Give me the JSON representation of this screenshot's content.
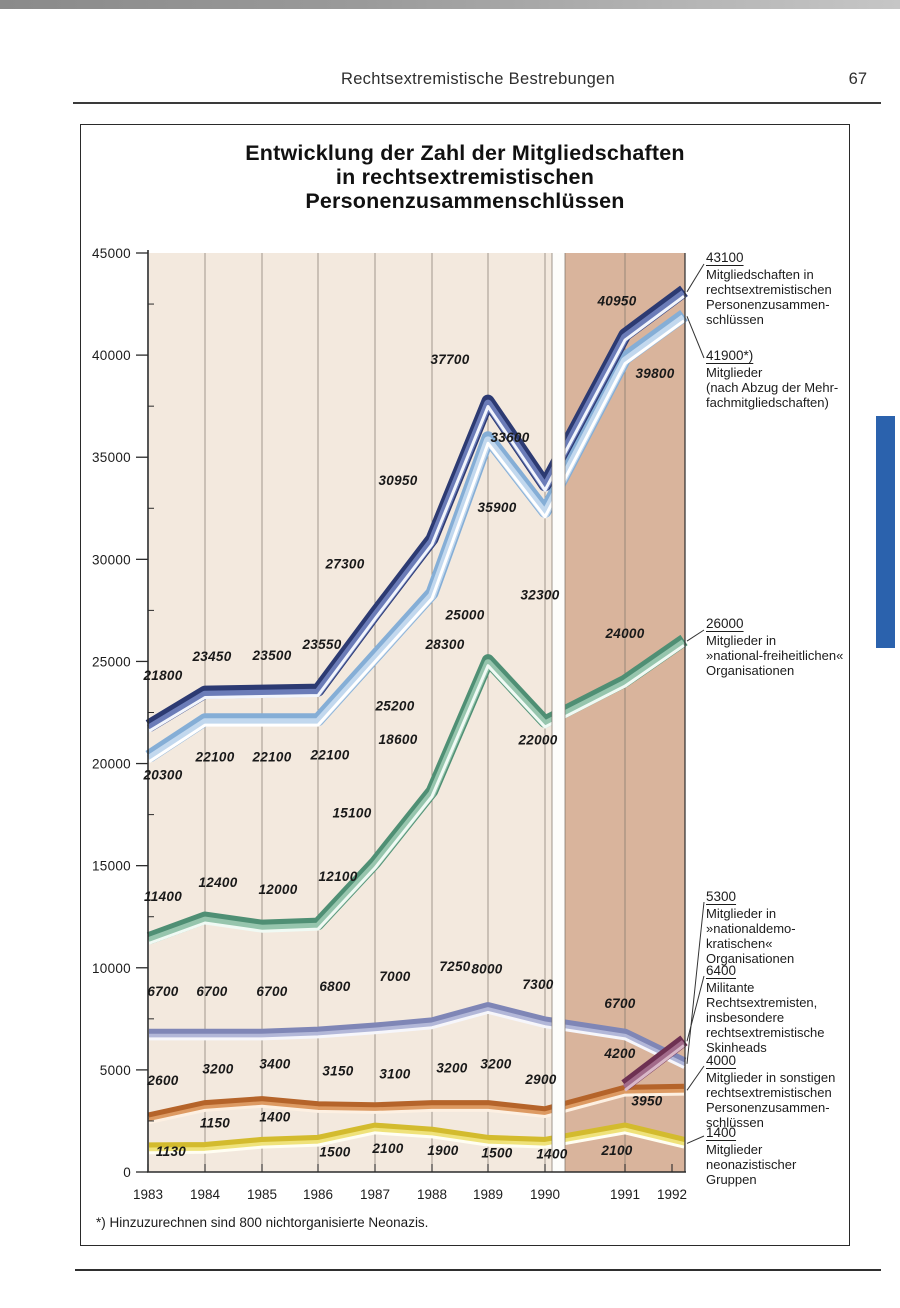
{
  "page": {
    "header_title": "Rechtsextremistische Bestrebungen",
    "page_number": "67",
    "footnote": "*) Hinzuzurechnen sind 800 nichtorganisierte Neonazis."
  },
  "colors": {
    "plot_background_1983_1990": "#f3e9de",
    "plot_background_1991_1992": "#d9b49c",
    "axis_break_band": "#fdfdfb",
    "gridline": "#7a7266",
    "axis": "#2b2b2b",
    "page_edge_tab": "#2b62ad",
    "data_label_text": "#191919"
  },
  "chart_data": {
    "type": "line",
    "title": "Entwicklung der Zahl der Mitgliedschaften\nin rechtsextremistischen\nPersonenzusammenschlüssen",
    "x": [
      1983,
      1984,
      1985,
      1986,
      1987,
      1988,
      1989,
      1990,
      1991,
      1992
    ],
    "ylim": [
      0,
      45000
    ],
    "ytick_step": 5000,
    "grid": "vertical",
    "axis_break_between": [
      1990,
      1991
    ],
    "legend_position": "right",
    "series": [
      {
        "id": "mitgliedschaften",
        "name": "Mitgliedschaften in rechtsextremistischen Personenzusammenschlüssen",
        "values": [
          21800,
          23450,
          23500,
          23550,
          27300,
          30950,
          37700,
          33600,
          40950,
          43100
        ],
        "colors": {
          "edge": "#2c3a72",
          "mid": "#6b7cb8",
          "core": "#f2f5fc"
        }
      },
      {
        "id": "mitglieder",
        "name": "Mitglieder (nach Abzug der Mehrfachmitgliedschaften)",
        "values": [
          20300,
          22100,
          22100,
          22100,
          25200,
          28300,
          35900,
          32300,
          39800,
          41900
        ],
        "colors": {
          "edge": "#85aed6",
          "mid": "#c2d8ee",
          "core": "#ffffff"
        }
      },
      {
        "id": "national_freiheitliche",
        "name": "Mitglieder in »national-freiheitlichen« Organisationen",
        "values": [
          11400,
          12400,
          12000,
          12100,
          15100,
          18600,
          25000,
          22000,
          24000,
          26000
        ],
        "colors": {
          "edge": "#4f8f74",
          "mid": "#96c5ad",
          "core": "#f0faf4"
        }
      },
      {
        "id": "nationaldemokratische",
        "name": "Mitglieder in »nationaldemokratischen« Organisationen",
        "values": [
          6700,
          6700,
          6700,
          6800,
          7000,
          7250,
          8000,
          7300,
          6700,
          5300
        ],
        "colors": {
          "edge": "#7f86b6",
          "mid": "#b2b7d8",
          "core": "#f6f6fb"
        }
      },
      {
        "id": "militante_skinheads",
        "name": "Militante Rechtsextremisten, insbesondere rechtsextremistische Skinheads",
        "values": [
          null,
          null,
          null,
          null,
          null,
          null,
          null,
          null,
          4200,
          6400
        ],
        "colors": {
          "edge": "#6e3152",
          "mid": "#a26b8a",
          "core": "#d9b8c8"
        }
      },
      {
        "id": "sonstige",
        "name": "Mitglieder in sonstigen rechtsextremistischen Personenzusammenschlüssen",
        "values": [
          2600,
          3200,
          3400,
          3150,
          3100,
          3200,
          3200,
          2900,
          3950,
          4000
        ],
        "colors": {
          "edge": "#b5642a",
          "mid": "#dd9a62",
          "core": "#fdf0e2"
        }
      },
      {
        "id": "neonazistische",
        "name": "Mitglieder neonazistischer Gruppen",
        "values": [
          1130,
          1150,
          1400,
          1500,
          2100,
          1900,
          1500,
          1400,
          2100,
          1400
        ],
        "colors": {
          "edge": "#d3bb2e",
          "mid": "#efe27a",
          "core": "#fffef2"
        }
      }
    ],
    "legend": [
      {
        "series": "mitgliedschaften",
        "value": "43100",
        "text": "Mitgliedschaften in\nrechtsextremistischen\nPersonenzusammen-\nschlüssen"
      },
      {
        "series": "mitglieder",
        "value": "41900*)",
        "text": "Mitglieder\n(nach Abzug der Mehr-\nfachmitgliedschaften)"
      },
      {
        "series": "national_freiheitliche",
        "value": "26000",
        "text": "Mitglieder in\n»national-freiheitlichen«\nOrganisationen"
      },
      {
        "series": "nationaldemokratische",
        "value": "5300",
        "text": "Mitglieder in\n»nationaldemo-\nkratischen«\nOrganisationen"
      },
      {
        "series": "militante_skinheads",
        "value": "6400",
        "text": "Militante\nRechtsextremisten,\ninsbesondere\nrechtsextremistische\nSkinheads"
      },
      {
        "series": "sonstige",
        "value": "4000",
        "text": "Mitglieder in sonstigen\nrechtsextremistischen\nPersonenzusammen-\nschlüssen"
      },
      {
        "series": "neonazistische",
        "value": "1400",
        "text": "Mitglieder\nneonazistischer\nGruppen"
      }
    ]
  }
}
